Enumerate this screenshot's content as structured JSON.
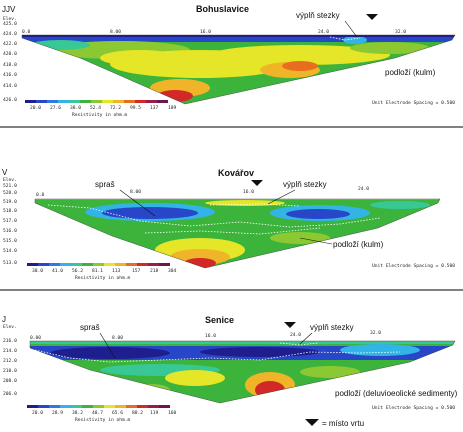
{
  "colors": {
    "scale": [
      "#1e1e8c",
      "#2846c8",
      "#2d78e6",
      "#32b4e6",
      "#37c896",
      "#3cb43c",
      "#8cc832",
      "#e6e628",
      "#f0b428",
      "#e66e1e",
      "#d22828",
      "#961e4b",
      "#6e1450"
    ],
    "bg": "#ffffff",
    "dashes": "#ffffff"
  },
  "legend_symbol_label": "= místo vrtu",
  "panels": [
    {
      "corner_letter": "JJV",
      "title": "Bohuslavice",
      "elev_label": "Elev.",
      "elev_ticks": [
        "425.0",
        "424.0",
        "422.0",
        "420.0",
        "418.0",
        "416.0",
        "414.0",
        "426.0"
      ],
      "x_ticks": [
        "0.0",
        "8.00",
        "16.0",
        "24.0",
        "32.0"
      ],
      "annotations": {
        "fill": "výplň stezky",
        "bedrock": "podloží (kulm)"
      },
      "colorbar_values": [
        "20.0",
        "27.6",
        "38.0",
        "52.4",
        "72.2",
        "99.5",
        "137",
        "189"
      ],
      "colorbar_caption": "Resistivity in ohm.m",
      "spacing_note": "Unit Electrode Spacing = 0.500"
    },
    {
      "corner_letter": "V",
      "title": "Kovářov",
      "elev_label": "Elev.",
      "elev_ticks": [
        "521.0",
        "520.0",
        "519.0",
        "518.0",
        "517.0",
        "516.0",
        "515.0",
        "514.0",
        "513.0"
      ],
      "x_ticks": [
        "0.0",
        "8.00",
        "16.0",
        "24.0"
      ],
      "annotations": {
        "loess": "spraš",
        "fill": "výplň stezky",
        "bedrock": "podloží (kulm)"
      },
      "colorbar_values": [
        "30.0",
        "41.0",
        "56.2",
        "81.1",
        "113",
        "157",
        "218",
        "304"
      ],
      "colorbar_caption": "Resistivity in ohm.m",
      "spacing_note": "Unit Electrode Spacing = 0.500"
    },
    {
      "corner_letter": "J",
      "title": "Senice",
      "elev_label": "Elev.",
      "elev_ticks": [
        "216.0",
        "214.0",
        "212.0",
        "210.0",
        "208.0",
        "206.0"
      ],
      "x_ticks": [
        "0.00",
        "8.00",
        "16.0",
        "24.0",
        "32.0"
      ],
      "annotations": {
        "loess": "spraš",
        "fill": "výplň stezky",
        "bedrock": "podloží (deluvioeolické sedimenty)"
      },
      "colorbar_values": [
        "20.0",
        "28.9",
        "38.2",
        "48.7",
        "65.6",
        "88.2",
        "119",
        "160"
      ],
      "colorbar_caption": "Resistivity in ohm.m",
      "spacing_note": "Unit Electrode Spacing = 0.500"
    }
  ]
}
